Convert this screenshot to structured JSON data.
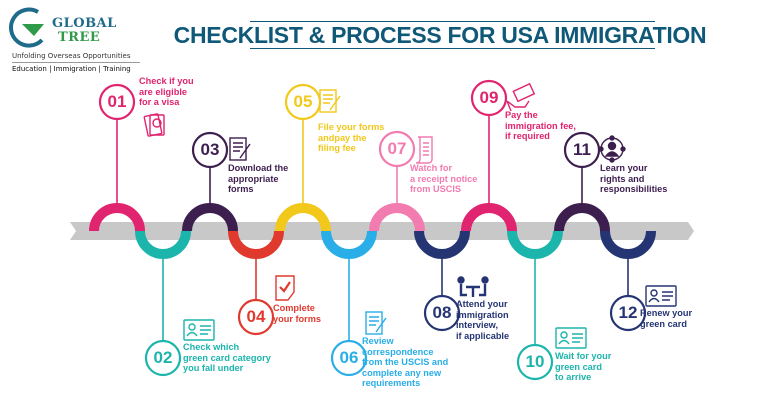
{
  "logo": {
    "brand_line1": "GLOBAL",
    "brand_line2": "TREE",
    "tagline": "Unfolding Overseas Opportunities",
    "services": "Education | Immigration | Training",
    "colors": {
      "blue": "#1f6b8a",
      "green": "#2e9a4a"
    }
  },
  "title": "CHECKLIST & PROCESS FOR USA IMMIGRATION",
  "title_color": "#0f5878",
  "band_color": "#c8c8c8",
  "steps": [
    {
      "number": "01",
      "text": "Check if you\nare eligible\nfor a visa",
      "color": "#e0246f",
      "icon": "passport-icon"
    },
    {
      "number": "02",
      "text": "Check which\ngreen card category\nyou fall under",
      "color": "#1cb5ac",
      "icon": "id-card-icon"
    },
    {
      "number": "03",
      "text": "Download the\nappropriate\nforms",
      "color": "#3d1f4f",
      "icon": "document-edit-icon"
    },
    {
      "number": "04",
      "text": "Complete\nyour forms",
      "color": "#e03a2f",
      "icon": "checked-document-icon"
    },
    {
      "number": "05",
      "text": "File your forms\nandpay the\nfiling fee",
      "color": "#f2c81a",
      "icon": "document-edit-icon"
    },
    {
      "number": "06",
      "text": "Review\ncorrespondence\nfrom the USCIS and\ncomplete any new\nrequirements",
      "color": "#29aee8",
      "icon": "document-edit-icon"
    },
    {
      "number": "07",
      "text": "Watch for\na receipt notice\nfrom USCIS",
      "color": "#f27bb0",
      "icon": "receipt-scroll-icon"
    },
    {
      "number": "08",
      "text": "Attend your\nimmigration\ninterview,\nif applicable",
      "color": "#253573",
      "icon": "interview-icon"
    },
    {
      "number": "09",
      "text": "Pay the\nimmigration fee,\nif required",
      "color": "#e0246f",
      "icon": "money-hand-icon"
    },
    {
      "number": "10",
      "text": "Wait for your\ngreen card\nto arrive",
      "color": "#1cb5ac",
      "icon": "id-card-icon"
    },
    {
      "number": "11",
      "text": "Learn your\nrights and\nresponsibilities",
      "color": "#3d1f4f",
      "icon": "person-network-icon"
    },
    {
      "number": "12",
      "text": "Renew your\ngreen card",
      "color": "#253573",
      "icon": "id-card-icon"
    }
  ]
}
